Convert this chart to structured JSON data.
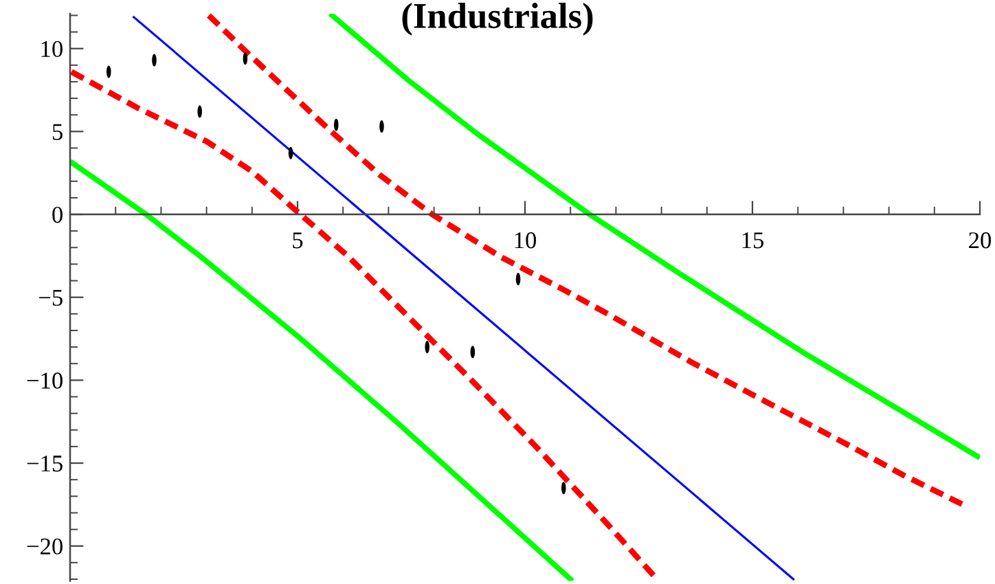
{
  "chart_data": {
    "type": "line",
    "title": "(Industrials)",
    "xlim": [
      0,
      20
    ],
    "ylim": [
      -22.1,
      12.1
    ],
    "xticks": [
      5,
      10,
      15,
      20
    ],
    "yticks": [
      -20,
      -15,
      -10,
      -5,
      0,
      5,
      10
    ],
    "series": [
      {
        "color": "#00ff00",
        "line_style": "solid",
        "x": [
          0.05,
          1.67,
          2.94,
          5.07,
          7.21,
          9.35,
          11.0
        ],
        "values": [
          3.1,
          0,
          -2.7,
          -7.5,
          -12.6,
          -17.9,
          -22.0
        ]
      },
      {
        "color": "#00ff00",
        "line_style": "solid",
        "x": [
          5.76,
          7.43,
          8.93,
          11.42,
          13.36,
          16.1,
          19.95
        ],
        "values": [
          12.0,
          8.1,
          4.9,
          0,
          -3.5,
          -8.3,
          -14.6
        ]
      },
      {
        "color": "#ff0000",
        "line_style": "dashed",
        "x": [
          0.03,
          1.5,
          3.0,
          4.0,
          4.94,
          6.1,
          7.48,
          8.86,
          10.24,
          11.82,
          12.9
        ],
        "values": [
          8.6,
          6.4,
          4.4,
          2.6,
          0.3,
          -2.5,
          -6.3,
          -10.1,
          -14.0,
          -18.7,
          -22.0
        ]
      },
      {
        "color": "#ff0000",
        "line_style": "dashed",
        "x": [
          3.05,
          3.8,
          4.65,
          5.7,
          6.8,
          7.96,
          9.49,
          10.82,
          11.82,
          13.65,
          14.95,
          16.2,
          17.1,
          18.3,
          19.7
        ],
        "values": [
          12.0,
          10.0,
          7.8,
          5.1,
          2.4,
          0,
          -2.6,
          -4.5,
          -6.0,
          -8.9,
          -10.8,
          -12.6,
          -13.9,
          -15.7,
          -17.6
        ]
      },
      {
        "color": "#0000ff",
        "line_style": "solid",
        "x": [
          1.4,
          15.9
        ],
        "values": [
          11.9,
          -22.0
        ]
      },
      {
        "type": "scatter",
        "color": "#000000",
        "marker": "circle",
        "x": [
          0.85,
          1.85,
          2.85,
          3.85,
          4.85,
          5.85,
          6.85,
          7.85,
          8.85,
          9.85,
          10.85
        ],
        "values": [
          8.6,
          9.3,
          6.2,
          9.4,
          3.7,
          5.4,
          5.3,
          -8.0,
          -8.3,
          -3.9,
          -16.5
        ]
      }
    ]
  }
}
